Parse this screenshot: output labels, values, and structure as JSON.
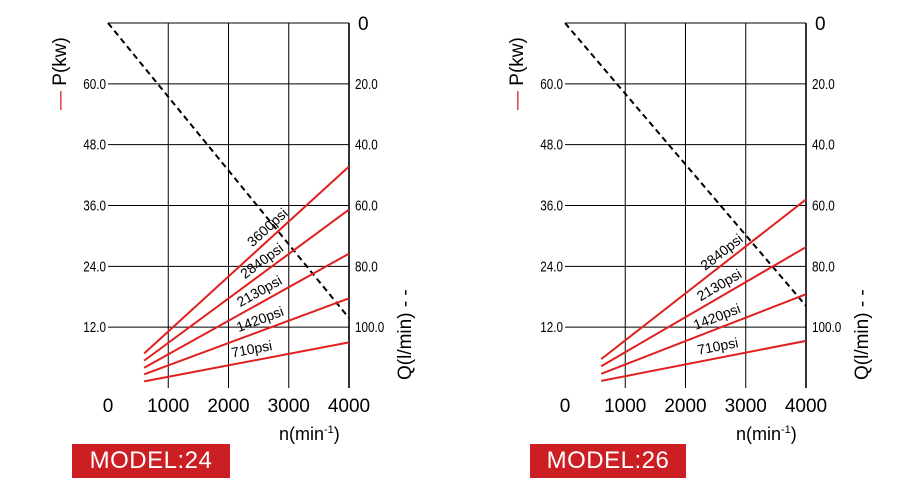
{
  "chart_data": [
    {
      "type": "line",
      "model_label": "MODEL:24",
      "xlabel": "n(min",
      "xlabel_sup": "-1",
      "xlabel_close": ")",
      "x_ticks": [
        0,
        1000,
        2000,
        3000,
        4000
      ],
      "xlim": [
        0,
        4000
      ],
      "left_axis": {
        "label": "P(kw)",
        "legend_mark": "—",
        "ticks": [
          "12.0",
          "24.0",
          "36.0",
          "48.0",
          "60.0"
        ],
        "tick_values": [
          12,
          24,
          36,
          48,
          60
        ],
        "ylim": [
          0,
          72
        ]
      },
      "right_axis": {
        "label": "Q(l/min)",
        "legend_mark": "- -",
        "top_tick": "0",
        "ticks": [
          "20.0",
          "40.0",
          "60.0",
          "80.0",
          "100.0"
        ],
        "tick_values": [
          20,
          40,
          60,
          80,
          100
        ],
        "ylim": [
          0,
          120
        ],
        "inverted": true
      },
      "grid": true,
      "power_series": [
        {
          "name": "3600psi",
          "x": [
            600,
            4000
          ],
          "y": [
            6.8,
            43.7
          ]
        },
        {
          "name": "2840psi",
          "x": [
            600,
            4000
          ],
          "y": [
            5.4,
            35.2
          ]
        },
        {
          "name": "2130psi",
          "x": [
            600,
            4000
          ],
          "y": [
            4.0,
            26.5
          ]
        },
        {
          "name": "1420psi",
          "x": [
            600,
            4000
          ],
          "y": [
            2.7,
            17.7
          ]
        },
        {
          "name": "710psi",
          "x": [
            600,
            4000
          ],
          "y": [
            1.3,
            9.0
          ]
        }
      ],
      "flow_series": {
        "x": [
          0,
          4000
        ],
        "y": [
          0,
          97
        ]
      }
    },
    {
      "type": "line",
      "model_label": "MODEL:26",
      "xlabel": "n(min",
      "xlabel_sup": "-1",
      "xlabel_close": ")",
      "x_ticks": [
        0,
        1000,
        2000,
        3000,
        4000
      ],
      "xlim": [
        0,
        4000
      ],
      "left_axis": {
        "label": "P(kw)",
        "legend_mark": "—",
        "ticks": [
          "12.0",
          "24.0",
          "36.0",
          "48.0",
          "60.0"
        ],
        "tick_values": [
          12,
          24,
          36,
          48,
          60
        ],
        "ylim": [
          0,
          72
        ]
      },
      "right_axis": {
        "label": "Q(l/min)",
        "legend_mark": "- -",
        "top_tick": "0",
        "ticks": [
          "20.0",
          "40.0",
          "60.0",
          "80.0",
          "100.0"
        ],
        "tick_values": [
          20,
          40,
          60,
          80,
          100
        ],
        "ylim": [
          0,
          120
        ],
        "inverted": true
      },
      "grid": true,
      "power_series": [
        {
          "name": "2840psi",
          "x": [
            600,
            4000
          ],
          "y": [
            5.7,
            37.2
          ]
        },
        {
          "name": "2130psi",
          "x": [
            600,
            4000
          ],
          "y": [
            4.3,
            27.8
          ]
        },
        {
          "name": "1420psi",
          "x": [
            600,
            4000
          ],
          "y": [
            2.8,
            18.5
          ]
        },
        {
          "name": "710psi",
          "x": [
            600,
            4000
          ],
          "y": [
            1.4,
            9.3
          ]
        }
      ],
      "flow_series": {
        "x": [
          0,
          4000
        ],
        "y": [
          0,
          93
        ]
      }
    }
  ],
  "colors": {
    "power_line": "#e0201f",
    "flow_line": "#000000",
    "grid": "#000000",
    "badge": "#cc1f24"
  }
}
